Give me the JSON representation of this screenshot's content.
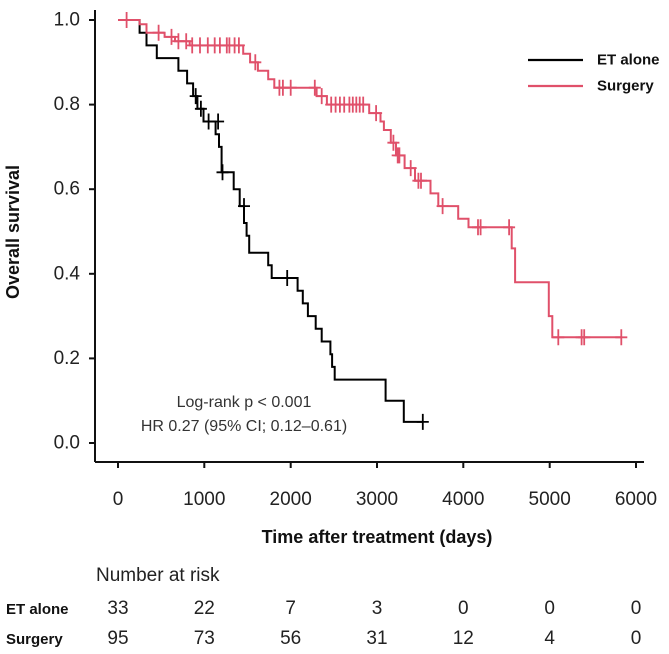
{
  "chart_data": {
    "type": "line",
    "subtype": "kaplan-meier",
    "title": "",
    "xlabel": "Time after treatment (days)",
    "ylabel": "Overall survival",
    "xlim": [
      0,
      6000
    ],
    "ylim": [
      0,
      1.0
    ],
    "x_ticks": [
      "0",
      "1000",
      "2000",
      "3000",
      "4000",
      "5000",
      "6000"
    ],
    "y_ticks": [
      "0.0",
      "0.2",
      "0.4",
      "0.6",
      "0.8",
      "1.0"
    ],
    "legend": {
      "position": "top-right",
      "entries": [
        "ET alone",
        "Surgery"
      ]
    },
    "series": [
      {
        "name": "ET alone",
        "color": "#000000",
        "steps": [
          [
            0,
            1.0
          ],
          [
            250,
            0.97
          ],
          [
            330,
            0.94
          ],
          [
            450,
            0.91
          ],
          [
            700,
            0.88
          ],
          [
            800,
            0.85
          ],
          [
            870,
            0.82
          ],
          [
            920,
            0.79
          ],
          [
            990,
            0.76
          ],
          [
            1130,
            0.73
          ],
          [
            1170,
            0.7
          ],
          [
            1200,
            0.64
          ],
          [
            1340,
            0.6
          ],
          [
            1410,
            0.56
          ],
          [
            1460,
            0.52
          ],
          [
            1490,
            0.49
          ],
          [
            1520,
            0.45
          ],
          [
            1740,
            0.42
          ],
          [
            1780,
            0.39
          ],
          [
            2080,
            0.36
          ],
          [
            2140,
            0.33
          ],
          [
            2200,
            0.3
          ],
          [
            2290,
            0.27
          ],
          [
            2360,
            0.24
          ],
          [
            2460,
            0.21
          ],
          [
            2480,
            0.18
          ],
          [
            2510,
            0.15
          ],
          [
            3100,
            0.1
          ],
          [
            3310,
            0.05
          ],
          [
            3530,
            0.05
          ]
        ],
        "censored": [
          [
            900,
            0.82
          ],
          [
            960,
            0.79
          ],
          [
            1050,
            0.76
          ],
          [
            1160,
            0.76
          ],
          [
            1210,
            0.64
          ],
          [
            1460,
            0.56
          ],
          [
            1960,
            0.39
          ],
          [
            3530,
            0.05
          ]
        ]
      },
      {
        "name": "Surgery",
        "color": "#e0506a",
        "steps": [
          [
            0,
            1.0
          ],
          [
            250,
            0.99
          ],
          [
            330,
            0.97
          ],
          [
            540,
            0.96
          ],
          [
            660,
            0.95
          ],
          [
            830,
            0.94
          ],
          [
            1450,
            0.92
          ],
          [
            1530,
            0.9
          ],
          [
            1620,
            0.88
          ],
          [
            1740,
            0.86
          ],
          [
            1810,
            0.84
          ],
          [
            2300,
            0.82
          ],
          [
            2420,
            0.8
          ],
          [
            2910,
            0.78
          ],
          [
            3040,
            0.76
          ],
          [
            3080,
            0.74
          ],
          [
            3160,
            0.71
          ],
          [
            3220,
            0.68
          ],
          [
            3320,
            0.65
          ],
          [
            3440,
            0.62
          ],
          [
            3620,
            0.59
          ],
          [
            3710,
            0.56
          ],
          [
            3940,
            0.53
          ],
          [
            4060,
            0.51
          ],
          [
            4560,
            0.46
          ],
          [
            4600,
            0.38
          ],
          [
            4990,
            0.3
          ],
          [
            5030,
            0.25
          ],
          [
            5830,
            0.25
          ]
        ],
        "censored": [
          [
            100,
            1.0
          ],
          [
            470,
            0.97
          ],
          [
            620,
            0.96
          ],
          [
            700,
            0.95
          ],
          [
            790,
            0.95
          ],
          [
            860,
            0.94
          ],
          [
            950,
            0.94
          ],
          [
            1040,
            0.94
          ],
          [
            1120,
            0.94
          ],
          [
            1180,
            0.94
          ],
          [
            1260,
            0.94
          ],
          [
            1290,
            0.94
          ],
          [
            1350,
            0.94
          ],
          [
            1400,
            0.94
          ],
          [
            1590,
            0.9
          ],
          [
            1870,
            0.84
          ],
          [
            1910,
            0.84
          ],
          [
            2000,
            0.84
          ],
          [
            2280,
            0.84
          ],
          [
            2360,
            0.82
          ],
          [
            2470,
            0.8
          ],
          [
            2520,
            0.8
          ],
          [
            2570,
            0.8
          ],
          [
            2620,
            0.8
          ],
          [
            2680,
            0.8
          ],
          [
            2720,
            0.8
          ],
          [
            2760,
            0.8
          ],
          [
            2800,
            0.8
          ],
          [
            2840,
            0.8
          ],
          [
            2990,
            0.78
          ],
          [
            3190,
            0.71
          ],
          [
            3240,
            0.68
          ],
          [
            3260,
            0.68
          ],
          [
            3390,
            0.65
          ],
          [
            3480,
            0.62
          ],
          [
            3510,
            0.62
          ],
          [
            3760,
            0.56
          ],
          [
            4170,
            0.51
          ],
          [
            4200,
            0.51
          ],
          [
            4530,
            0.51
          ],
          [
            5100,
            0.25
          ],
          [
            5370,
            0.25
          ],
          [
            5400,
            0.25
          ],
          [
            5830,
            0.25
          ]
        ]
      }
    ],
    "annotations": [
      "Log-rank p < 0.001",
      "HR 0.27 (95% CI; 0.12–0.61)"
    ]
  },
  "risk_table": {
    "title": "Number at risk",
    "rows": [
      {
        "label": "ET alone",
        "values": [
          "33",
          "22",
          "7",
          "3",
          "0",
          "0",
          "0"
        ]
      },
      {
        "label": "Surgery",
        "values": [
          "95",
          "73",
          "56",
          "31",
          "12",
          "4",
          "0"
        ]
      }
    ]
  }
}
